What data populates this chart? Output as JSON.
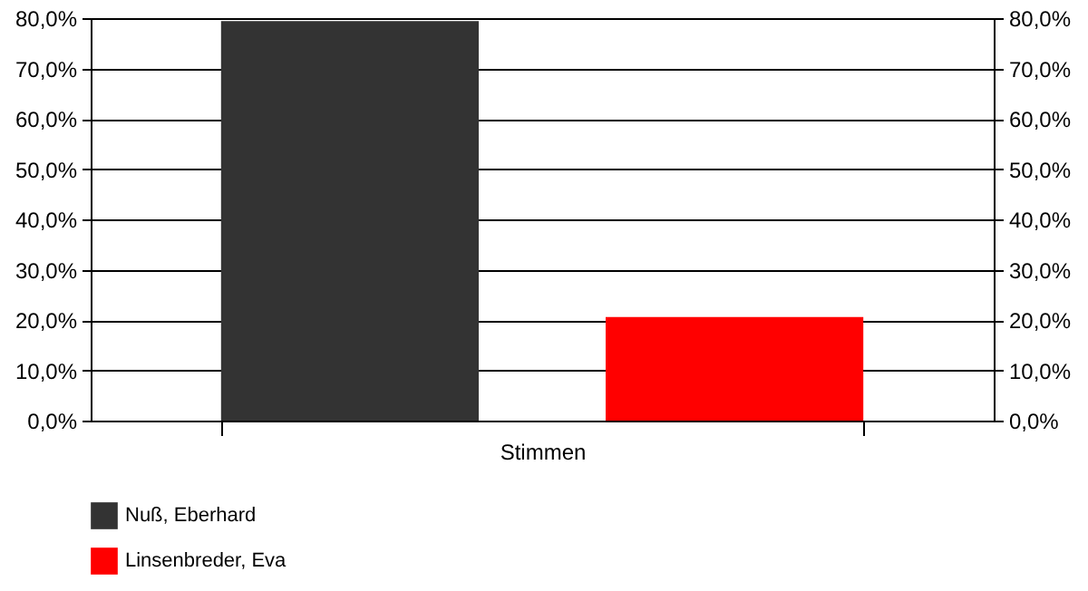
{
  "chart_data": {
    "type": "bar",
    "categories": [
      "Stimmen"
    ],
    "series": [
      {
        "name": "Nuß, Eberhard",
        "color": "#333333",
        "values": [
          79.4
        ]
      },
      {
        "name": "Linsenbreder, Eva",
        "color": "#ff0000",
        "values": [
          20.6
        ]
      }
    ],
    "ylim": [
      0,
      80
    ],
    "yticks": [
      {
        "value": 0,
        "label": "0,0%"
      },
      {
        "value": 10,
        "label": "10,0%"
      },
      {
        "value": 20,
        "label": "20,0%"
      },
      {
        "value": 30,
        "label": "30,0%"
      },
      {
        "value": 40,
        "label": "40,0%"
      },
      {
        "value": 50,
        "label": "50,0%"
      },
      {
        "value": 60,
        "label": "60,0%"
      },
      {
        "value": 70,
        "label": "70,0%"
      },
      {
        "value": 80,
        "label": "80,0%"
      }
    ],
    "grid": "y",
    "legend": "bottom"
  }
}
